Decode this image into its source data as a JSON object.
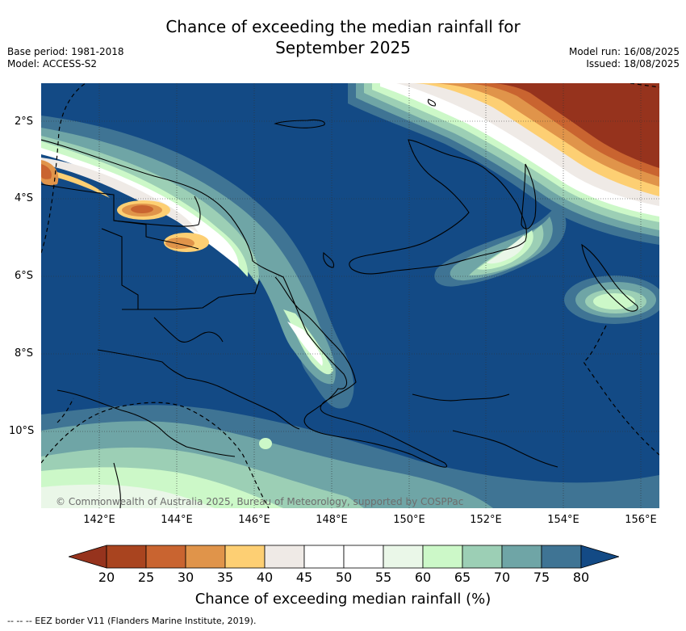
{
  "title_line1": "Chance of exceeding the median rainfall for",
  "title_line2": "September 2025",
  "meta_left": {
    "base_period": "Base period: 1981-2018",
    "model": "Model: ACCESS-S2"
  },
  "meta_right": {
    "model_run": "Model run: 16/08/2025",
    "issued": "Issued: 18/08/2025"
  },
  "lat_labels": [
    "2°S",
    "4°S",
    "6°S",
    "8°S",
    "10°S"
  ],
  "lon_labels": [
    "142°E",
    "144°E",
    "146°E",
    "148°E",
    "150°E",
    "152°E",
    "154°E",
    "156°E"
  ],
  "copyright": "© Commonwealth of Australia 2025, Bureau of Meteorology, supported by COSPPac",
  "colorbar": {
    "ticks": [
      "20",
      "25",
      "30",
      "35",
      "40",
      "45",
      "50",
      "55",
      "60",
      "65",
      "70",
      "75",
      "80"
    ],
    "colors": [
      "#a9441f",
      "#c96430",
      "#e0944a",
      "#fdcf73",
      "#efeae6",
      "#ffffff",
      "#ffffff",
      "#eaf7e8",
      "#ccf8c8",
      "#9ccfb5",
      "#6fa5a6",
      "#3f7494"
    ],
    "under_color": "#96331d",
    "over_color": "#134a85",
    "label": "Chance of exceeding median rainfall (%)"
  },
  "footer": "-- -- -- EEZ border V11 (Flanders Marine Institute, 2019)."
}
